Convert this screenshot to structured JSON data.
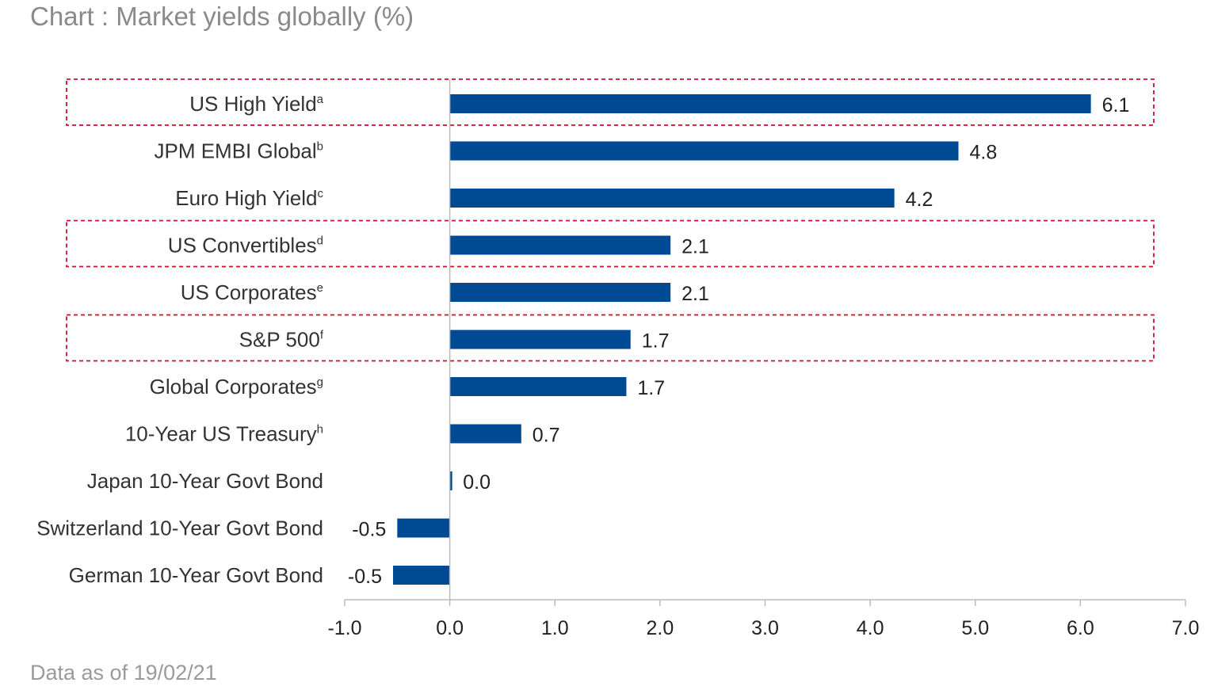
{
  "title": "Chart : Market yields globally (%)",
  "footnote": "Data as of 19/02/21",
  "colors": {
    "bar": "#004a93",
    "highlight": "#c8102e",
    "axis": "#bbbbbb"
  },
  "chart_data": {
    "type": "bar",
    "orientation": "horizontal",
    "title": "Chart : Market yields globally (%)",
    "categories": [
      "US High Yield",
      "JPM EMBI Global",
      "Euro High Yield",
      "US Convertibles",
      "US Corporates",
      "S&P 500",
      "Global Corporates",
      "10-Year US Treasury",
      "Japan 10-Year Govt Bond",
      "Switzerland 10-Year Govt Bond",
      "German 10-Year Govt Bond"
    ],
    "superscripts": [
      "a",
      "b",
      "c",
      "d",
      "e",
      "f",
      "g",
      "h",
      "",
      "",
      ""
    ],
    "values": [
      6.1,
      4.84,
      4.23,
      2.1,
      2.1,
      1.72,
      1.68,
      0.68,
      0.02,
      -0.5,
      -0.54
    ],
    "value_labels": [
      "6.1",
      "4.8",
      "4.2",
      "2.1",
      "2.1",
      "1.7",
      "1.7",
      "0.7",
      "0.0",
      "-0.5",
      "-0.5"
    ],
    "highlighted": [
      "US High Yield",
      "US Convertibles",
      "S&P 500"
    ],
    "xlim": [
      -1.0,
      7.0
    ],
    "xticks": [
      "-1.0",
      "0.0",
      "1.0",
      "2.0",
      "3.0",
      "4.0",
      "5.0",
      "6.0",
      "7.0"
    ],
    "grid": false,
    "legend": "none"
  }
}
